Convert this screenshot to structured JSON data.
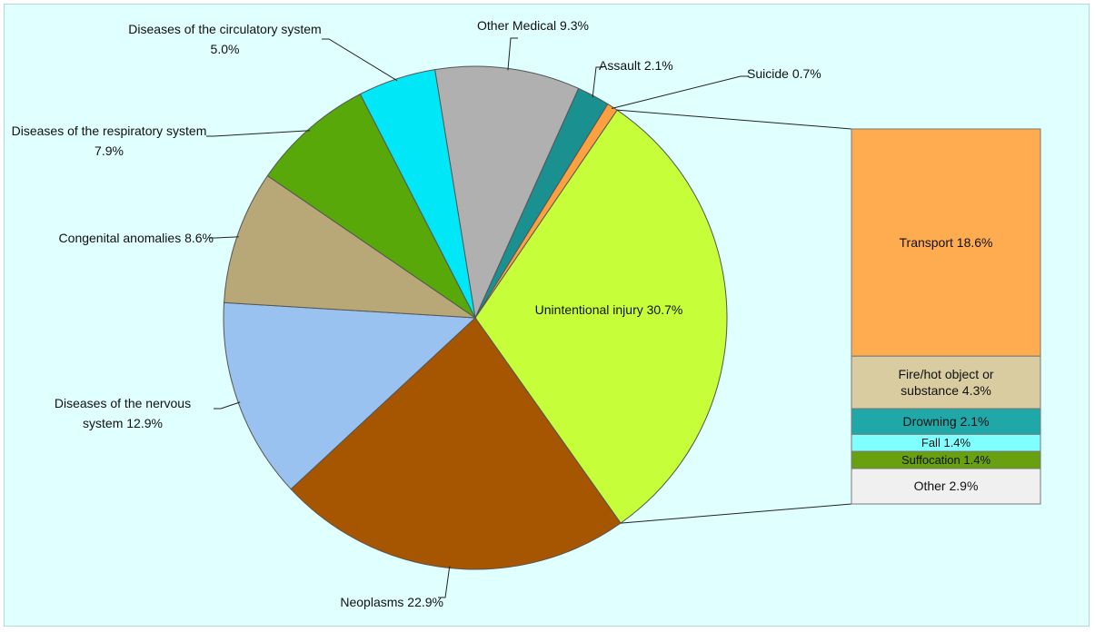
{
  "chart_data": {
    "type": "pie-of-bar",
    "categories": [
      "Unintentional injury",
      "Neoplasms",
      "Diseases of the nervous system",
      "Congenital anomalies",
      "Diseases of the respiratory system",
      "Diseases of the circulatory system",
      "Other Medical",
      "Assault",
      "Suicide"
    ],
    "values": [
      30.7,
      22.9,
      12.9,
      8.6,
      7.9,
      5.0,
      9.3,
      2.1,
      0.7
    ],
    "value_labels": [
      "30.7%",
      "22.9%",
      "12.9%",
      "8.6%",
      "7.9%",
      "5.0%",
      "9.3%",
      "2.1%",
      "0.7%"
    ],
    "colors": [
      "#c6ff3a",
      "#a65500",
      "#99c2f0",
      "#b8a878",
      "#58a80a",
      "#00e8f8",
      "#b0b0b0",
      "#1a9090",
      "#ffa040"
    ],
    "bar": {
      "categories": [
        "Transport",
        "Fire/hot object or substance",
        "Drowning",
        "Fall",
        "Suffocation",
        "Other"
      ],
      "values": [
        18.6,
        4.3,
        2.1,
        1.4,
        1.4,
        2.9
      ],
      "value_labels": [
        "18.6%",
        "4.3%",
        "2.1%",
        "1.4%",
        "1.4%",
        "2.9%"
      ],
      "colors": [
        "#ffac50",
        "#d8cca0",
        "#20a8a8",
        "#80ffff",
        "#68a010",
        "#f0f0f0"
      ]
    }
  }
}
